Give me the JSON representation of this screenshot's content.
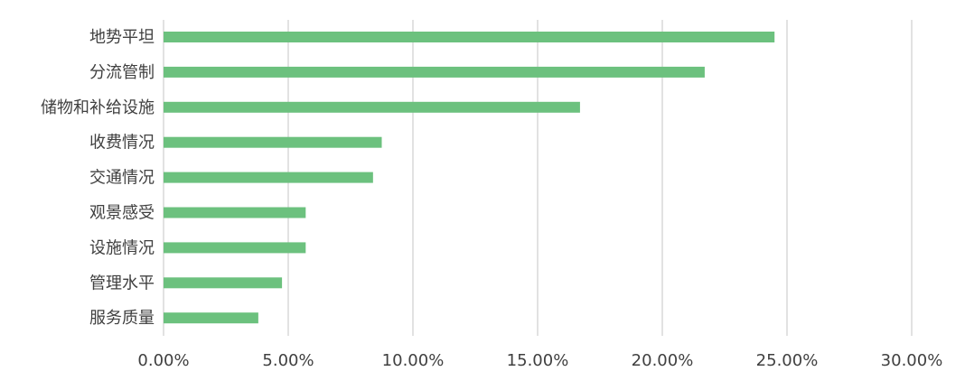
{
  "chart_data": {
    "type": "bar",
    "orientation": "horizontal",
    "categories": [
      "地势平坦",
      "分流管制",
      "储物和补给设施",
      "收费情况",
      "交通情况",
      "观景感受",
      "设施情况",
      "管理水平",
      "服务质量"
    ],
    "values": [
      24.5,
      21.7,
      16.7,
      8.75,
      8.4,
      5.7,
      5.7,
      4.75,
      3.8
    ],
    "xlim": [
      0,
      30
    ],
    "x_ticks": [
      0,
      5,
      10,
      15,
      20,
      25,
      30
    ],
    "x_tick_labels": [
      "0.00%",
      "5.00%",
      "10.00%",
      "15.00%",
      "20.00%",
      "25.00%",
      "30.00%"
    ],
    "bar_color": "#6cc17e",
    "grid": "vertical",
    "grid_color": "#d9d9d9",
    "legend": "none",
    "title": "",
    "xlabel": "",
    "ylabel": ""
  }
}
